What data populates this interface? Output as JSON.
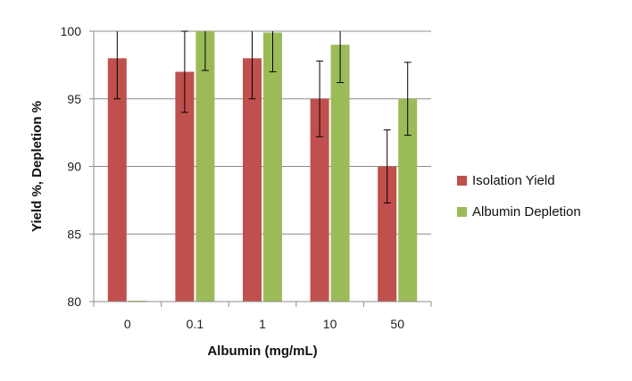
{
  "chart_data": {
    "type": "bar",
    "title": "",
    "xlabel": "Albumin (mg/mL)",
    "ylabel": "Yield %, Depletion %",
    "categories": [
      "0",
      "0.1",
      "1",
      "10",
      "50"
    ],
    "ylim": [
      80,
      100
    ],
    "yticks": [
      80,
      85,
      90,
      95,
      100
    ],
    "grid": true,
    "legend_position": "right",
    "series": [
      {
        "name": "Isolation Yield",
        "color": "#c0504d",
        "values": [
          98,
          97,
          98,
          95,
          90
        ],
        "errors": [
          3,
          3,
          3,
          2.8,
          2.7
        ]
      },
      {
        "name": "Albumin Depletion",
        "color": "#9bbb59",
        "values": [
          80,
          100,
          99.9,
          99,
          95
        ],
        "errors": [
          0,
          2.9,
          2.9,
          2.8,
          2.7
        ]
      }
    ]
  }
}
